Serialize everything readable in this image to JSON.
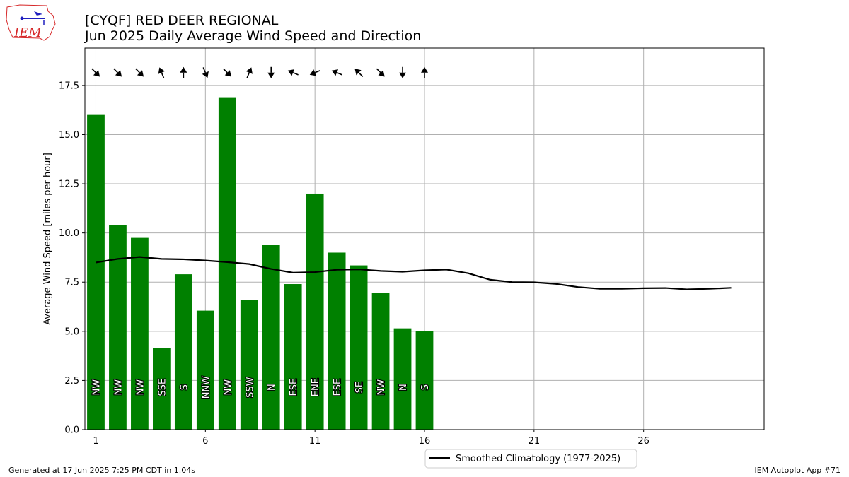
{
  "header": {
    "title_line1": "[CYQF] RED DEER REGIONAL",
    "title_line2": "Jun 2025 Daily Average Wind Speed and Direction",
    "logo_text": "IEM"
  },
  "footer": {
    "generated": "Generated at 17 Jun 2025 7:25 PM CDT in 1.04s",
    "app": "IEM Autoplot App #71"
  },
  "colors": {
    "bar": "#008000",
    "line": "#000000",
    "grid": "#b0b0b0",
    "logo_red": "#d62728",
    "logo_blue": "#1f1fbf"
  },
  "chart_data": {
    "type": "bar",
    "ylabel": "Average Wind Speed [miles per hour]",
    "xlim": [
      0.5,
      31.5
    ],
    "ylim": [
      0,
      19.4
    ],
    "grid": true,
    "x_ticks": [
      1,
      6,
      11,
      16,
      21,
      26
    ],
    "y_ticks": [
      0.0,
      2.5,
      5.0,
      7.5,
      10.0,
      12.5,
      15.0,
      17.5
    ],
    "y_tick_labels": [
      "0.0",
      "2.5",
      "5.0",
      "7.5",
      "10.0",
      "12.5",
      "15.0",
      "17.5"
    ],
    "legend_position": "bottom-center",
    "days": [
      1,
      2,
      3,
      4,
      5,
      6,
      7,
      8,
      9,
      10,
      11,
      12,
      13,
      14,
      15,
      16
    ],
    "speed": [
      16.0,
      10.4,
      9.75,
      4.15,
      7.9,
      6.05,
      16.9,
      6.6,
      9.4,
      7.4,
      12.0,
      9.0,
      8.35,
      6.95,
      5.15,
      5.0
    ],
    "direction": [
      "NW",
      "NW",
      "NW",
      "SSE",
      "S",
      "NNW",
      "NW",
      "SSW",
      "N",
      "ESE",
      "ENE",
      "ESE",
      "SE",
      "NW",
      "N",
      "S"
    ],
    "direction_deg": [
      315,
      315,
      315,
      157.5,
      180,
      337.5,
      315,
      202.5,
      0,
      112.5,
      67.5,
      112.5,
      135,
      315,
      0,
      180
    ],
    "climatology": {
      "name": "Smoothed Climatology (1977-2025)",
      "x": [
        1,
        2,
        3,
        4,
        5,
        6,
        7,
        8,
        9,
        10,
        11,
        12,
        13,
        14,
        15,
        16,
        17,
        18,
        19,
        20,
        21,
        22,
        23,
        24,
        25,
        26,
        27,
        28,
        29,
        30
      ],
      "y": [
        8.5,
        8.68,
        8.78,
        8.68,
        8.66,
        8.6,
        8.52,
        8.42,
        8.17,
        7.98,
        8.01,
        8.13,
        8.15,
        8.07,
        8.03,
        8.1,
        8.14,
        7.95,
        7.62,
        7.5,
        7.49,
        7.41,
        7.25,
        7.16,
        7.16,
        7.19,
        7.2,
        7.13,
        7.16,
        7.21
      ]
    }
  }
}
